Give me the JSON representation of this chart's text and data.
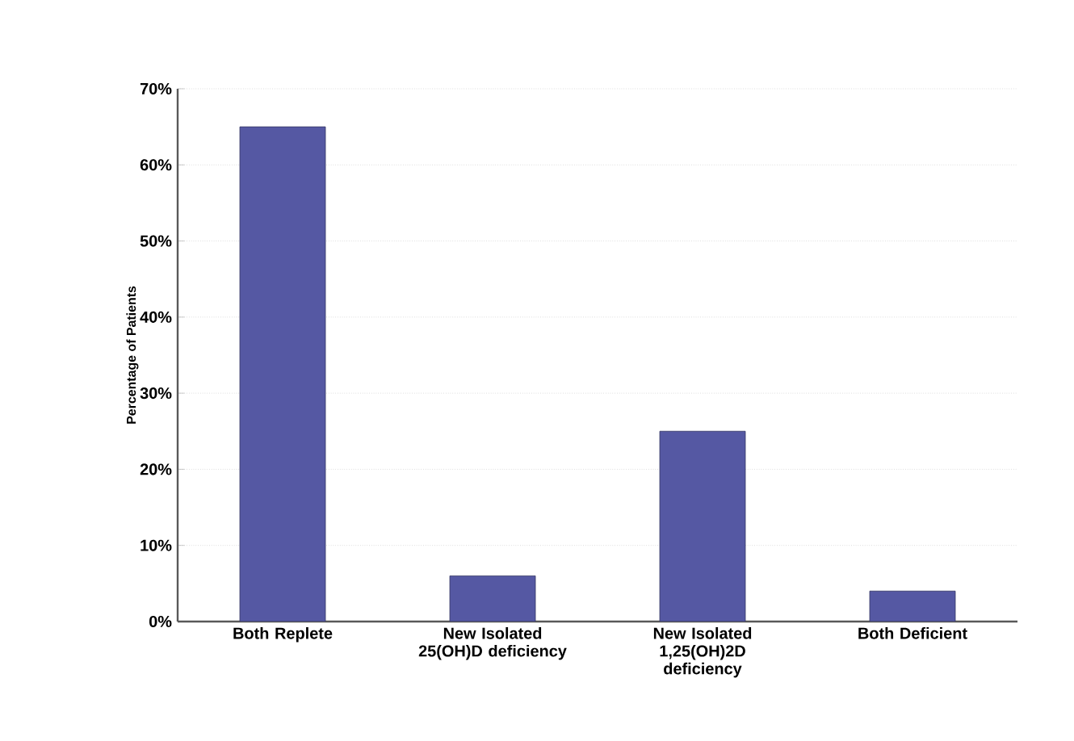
{
  "chart_data": {
    "type": "bar",
    "ylabel": "Percentage of Patients",
    "categories": [
      "Both Replete",
      "New Isolated 25(OH)D deficiency",
      "New Isolated 1,25(OH)2D deficiency",
      "Both Deficient"
    ],
    "values": [
      65,
      6,
      25,
      4
    ],
    "color": "#5558a3",
    "ylim": [
      0,
      70
    ],
    "yticks": [
      {
        "value": 0,
        "label": "0%"
      },
      {
        "value": 10,
        "label": "10%"
      },
      {
        "value": 20,
        "label": "20%"
      },
      {
        "value": 30,
        "label": "30%"
      },
      {
        "value": 40,
        "label": "40%"
      },
      {
        "value": 50,
        "label": "50%"
      },
      {
        "value": 60,
        "label": "60%"
      },
      {
        "value": 70,
        "label": "70%"
      }
    ],
    "grid": "y"
  }
}
